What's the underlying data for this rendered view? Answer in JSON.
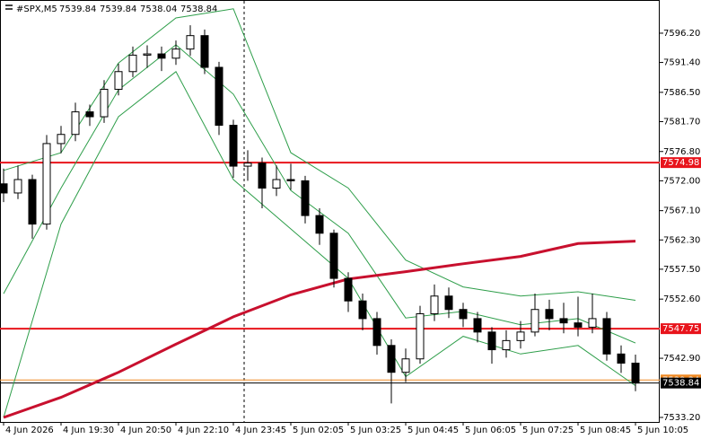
{
  "chart_data": {
    "type": "candlestick",
    "header": {
      "symbol": "#SPX,M5",
      "ohlc": [
        7539.84,
        7539.84,
        7538.04,
        7538.84
      ]
    },
    "ylim": [
      7532.46,
      7601.64
    ],
    "yticks": [
      {
        "value": 7596.2,
        "label": "7596.20"
      },
      {
        "value": 7591.4,
        "label": "7591.40"
      },
      {
        "value": 7586.5,
        "label": "7586.50"
      },
      {
        "value": 7581.7,
        "label": "7581.70"
      },
      {
        "value": 7576.8,
        "label": "7576.80"
      },
      {
        "value": 7572,
        "label": "7572.00"
      },
      {
        "value": 7567.1,
        "label": "7567.10"
      },
      {
        "value": 7562.3,
        "label": "7562.30"
      },
      {
        "value": 7557.5,
        "label": "7557.50"
      },
      {
        "value": 7552.6,
        "label": "7552.60"
      },
      {
        "value": 7542.9,
        "label": "7542.90"
      },
      {
        "value": 7533.2,
        "label": "7533.20"
      }
    ],
    "xticks": [
      {
        "value": 0,
        "label": "4 Jun 2026"
      },
      {
        "value": 4,
        "label": "4 Jun 19:30"
      },
      {
        "value": 8,
        "label": "4 Jun 20:50"
      },
      {
        "value": 12,
        "label": "4 Jun 22:10"
      },
      {
        "value": 16,
        "label": "4 Jun 23:45"
      },
      {
        "value": 20,
        "label": "5 Jun 02:05"
      },
      {
        "value": 24,
        "label": "5 Jun 03:25"
      },
      {
        "value": 28,
        "label": "5 Jun 04:45"
      },
      {
        "value": 32,
        "label": "5 Jun 06:05"
      },
      {
        "value": 36,
        "label": "5 Jun 07:25"
      },
      {
        "value": 40,
        "label": "5 Jun 08:45"
      },
      {
        "value": 44,
        "label": "5 Jun 10:05"
      }
    ],
    "candles": [
      [
        7571.5,
        7574.0,
        7568.5,
        7570.0
      ],
      [
        7570.0,
        7574.5,
        7569.0,
        7572.2
      ],
      [
        7572.2,
        7573.0,
        7562.5,
        7564.9
      ],
      [
        7564.9,
        7579.5,
        7564.0,
        7578.1
      ],
      [
        7578.1,
        7581.0,
        7576.5,
        7579.6
      ],
      [
        7579.6,
        7584.8,
        7578.5,
        7583.3
      ],
      [
        7583.3,
        7584.5,
        7581.0,
        7582.5
      ],
      [
        7582.5,
        7588.5,
        7581.5,
        7587.0
      ],
      [
        7587.0,
        7591.2,
        7586.0,
        7589.9
      ],
      [
        7589.9,
        7594.0,
        7589.0,
        7592.6
      ],
      [
        7592.6,
        7594.2,
        7590.5,
        7592.8
      ],
      [
        7592.8,
        7594.0,
        7590.0,
        7592.1
      ],
      [
        7592.1,
        7595.0,
        7591.0,
        7593.6
      ],
      [
        7593.6,
        7597.5,
        7592.5,
        7595.8
      ],
      [
        7595.8,
        7596.8,
        7589.5,
        7590.6
      ],
      [
        7590.6,
        7591.5,
        7579.5,
        7581.1
      ],
      [
        7581.1,
        7582.0,
        7572.5,
        7574.4
      ],
      [
        7574.4,
        7577.0,
        7572.0,
        7574.9
      ],
      [
        7574.9,
        7575.8,
        7567.5,
        7570.8
      ],
      [
        7570.8,
        7574.5,
        7569.5,
        7572.2
      ],
      [
        7572.2,
        7574.8,
        7570.5,
        7572.0
      ],
      [
        7572.0,
        7572.8,
        7565.0,
        7566.3
      ],
      [
        7566.3,
        7567.5,
        7561.5,
        7563.4
      ],
      [
        7563.4,
        7564.0,
        7554.5,
        7556.0
      ],
      [
        7556.0,
        7557.0,
        7550.5,
        7552.3
      ],
      [
        7552.3,
        7553.5,
        7547.5,
        7549.4
      ],
      [
        7549.4,
        7550.5,
        7543.5,
        7545.0
      ],
      [
        7545.0,
        7546.0,
        7535.5,
        7540.6
      ],
      [
        7540.6,
        7544.5,
        7539.0,
        7542.8
      ],
      [
        7542.8,
        7551.5,
        7542.0,
        7550.2
      ],
      [
        7550.2,
        7555.0,
        7549.0,
        7553.1
      ],
      [
        7553.1,
        7554.5,
        7549.5,
        7550.9
      ],
      [
        7550.9,
        7552.0,
        7548.0,
        7549.4
      ],
      [
        7549.4,
        7550.5,
        7545.5,
        7547.2
      ],
      [
        7547.2,
        7548.0,
        7542.0,
        7544.3
      ],
      [
        7544.3,
        7547.5,
        7543.0,
        7545.8
      ],
      [
        7545.8,
        7549.0,
        7544.5,
        7547.2
      ],
      [
        7547.2,
        7553.5,
        7546.5,
        7550.9
      ],
      [
        7550.9,
        7552.5,
        7547.5,
        7549.4
      ],
      [
        7549.4,
        7552.0,
        7547.0,
        7548.7
      ],
      [
        7548.7,
        7553.0,
        7546.5,
        7548.0
      ],
      [
        7548.0,
        7553.5,
        7547.0,
        7549.4
      ],
      [
        7549.4,
        7550.5,
        7542.5,
        7543.6
      ],
      [
        7543.6,
        7545.0,
        7540.5,
        7542.1
      ],
      [
        7542.1,
        7543.5,
        7537.5,
        7538.84
      ]
    ],
    "indicators": [
      {
        "color": "#2e9e4a",
        "width": 1,
        "x": [
          0,
          4,
          8,
          12,
          16,
          20,
          24,
          28,
          32,
          36,
          40,
          44
        ],
        "values": [
          7573.7,
          7576.6,
          7591.3,
          7598.7,
          7600.2,
          7576.6,
          7570.8,
          7559.0,
          7554.6,
          7553.1,
          7553.8,
          7552.4
        ]
      },
      {
        "color": "#2e9e4a",
        "width": 1,
        "x": [
          0,
          4,
          8,
          12,
          16,
          20,
          24,
          28,
          32,
          36,
          40,
          44
        ],
        "values": [
          7553.5,
          7570.8,
          7586.9,
          7594.3,
          7586.2,
          7570.4,
          7563.4,
          7549.5,
          7550.6,
          7548.4,
          7549.4,
          7545.4
        ]
      },
      {
        "color": "#2e9e4a",
        "width": 1,
        "x": [
          0,
          4,
          8,
          12,
          16,
          20,
          24,
          28,
          32,
          36,
          40,
          44
        ],
        "values": [
          7533.2,
          7564.9,
          7582.5,
          7589.9,
          7572.2,
          7564.1,
          7556.0,
          7539.9,
          7546.5,
          7543.6,
          7545.0,
          7538.4
        ]
      },
      {
        "color": "#c8102e",
        "width": 3,
        "x": [
          0,
          4,
          8,
          12,
          16,
          20,
          24,
          28,
          32,
          36,
          40,
          44
        ],
        "values": [
          7533.2,
          7536.5,
          7540.6,
          7545.2,
          7549.7,
          7553.3,
          7555.9,
          7557.1,
          7558.4,
          7559.6,
          7561.7,
          7562.1
        ]
      }
    ],
    "levels": [
      {
        "value": 7574.98,
        "color": "#e8141c",
        "text_color": "#ffffff"
      },
      {
        "value": 7547.75,
        "color": "#e8141c",
        "text_color": "#ffffff"
      },
      {
        "value": 7539.34,
        "color": "#f08a24",
        "text_color": "#ffffff"
      },
      {
        "value": 7538.84,
        "color": "#000000",
        "text_color": "#ffffff"
      }
    ]
  }
}
